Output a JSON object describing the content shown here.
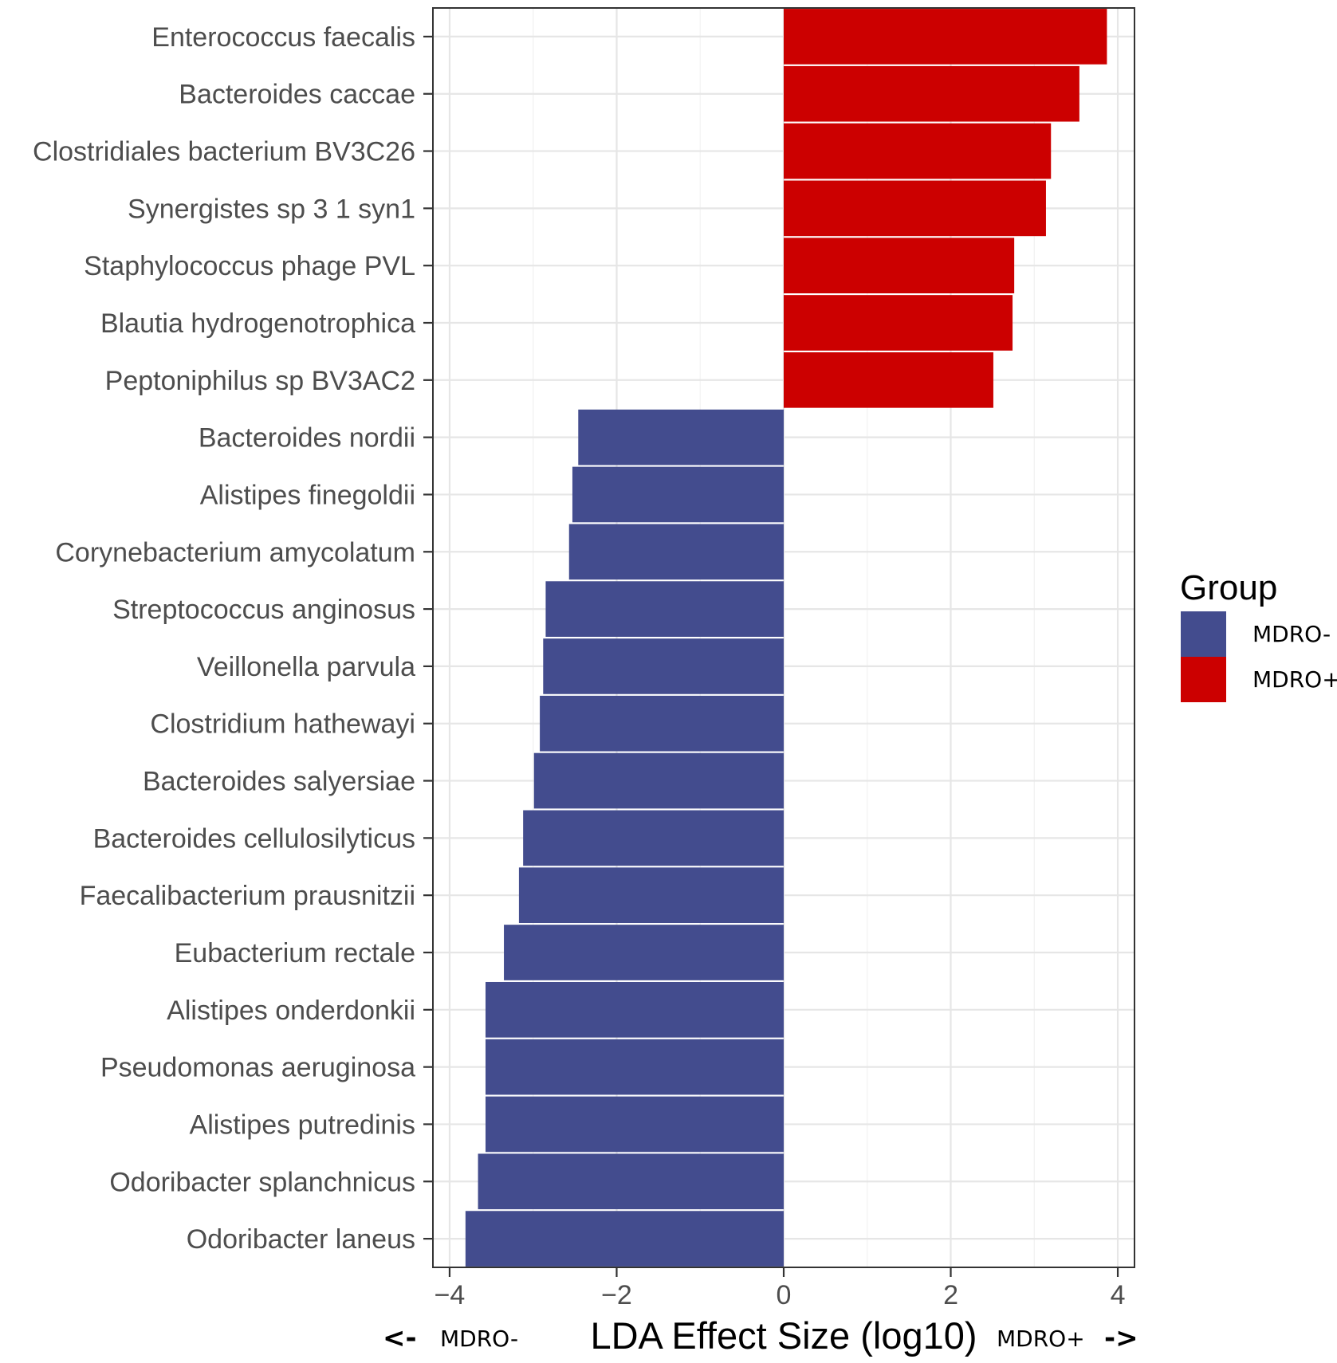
{
  "chart_data": {
    "type": "bar",
    "orientation": "horizontal",
    "categories": [
      "Enterococcus faecalis",
      "Bacteroides caccae",
      "Clostridiales bacterium BV3C26",
      "Synergistes sp 3 1 syn1",
      "Staphylococcus phage PVL",
      "Blautia hydrogenotrophica",
      "Peptoniphilus sp BV3AC2",
      "Bacteroides nordii",
      "Alistipes finegoldii",
      "Corynebacterium amycolatum",
      "Streptococcus anginosus",
      "Veillonella parvula",
      "Clostridium hathewayi",
      "Bacteroides salyersiae",
      "Bacteroides cellulosilyticus",
      "Faecalibacterium prausnitzii",
      "Eubacterium rectale",
      "Alistipes onderdonkii",
      "Pseudomonas aeruginosa",
      "Alistipes putredinis",
      "Odoribacter splanchnicus",
      "Odoribacter laneus"
    ],
    "values": [
      3.87,
      3.54,
      3.2,
      3.14,
      2.76,
      2.74,
      2.51,
      -2.46,
      -2.53,
      -2.57,
      -2.85,
      -2.88,
      -2.92,
      -2.99,
      -3.12,
      -3.17,
      -3.35,
      -3.57,
      -3.57,
      -3.57,
      -3.66,
      -3.81
    ],
    "groups": [
      "MDRO+",
      "MDRO+",
      "MDRO+",
      "MDRO+",
      "MDRO+",
      "MDRO+",
      "MDRO+",
      "MDRO-",
      "MDRO-",
      "MDRO-",
      "MDRO-",
      "MDRO-",
      "MDRO-",
      "MDRO-",
      "MDRO-",
      "MDRO-",
      "MDRO-",
      "MDRO-",
      "MDRO-",
      "MDRO-",
      "MDRO-",
      "MDRO-"
    ],
    "xlim": [
      -4.2,
      4.2
    ],
    "xticks": [
      -4,
      -2,
      0,
      2,
      4
    ],
    "xtick_labels": [
      "−4",
      "−2",
      "0",
      "2",
      "4"
    ],
    "title": "",
    "xlabel": "LDA Effect Size (log10)",
    "ylabel": "",
    "grid": true,
    "direction_labels": {
      "left_arrow": "<-",
      "left_group": "MDRO-",
      "right_group": "MDRO+",
      "right_arrow": "->"
    },
    "legend": {
      "title": "Group",
      "position": "right",
      "entries": [
        {
          "label": "MDRO-",
          "color": "#434c8e"
        },
        {
          "label": "MDRO+",
          "color": "#cc0000"
        }
      ]
    },
    "colors": {
      "MDRO-": "#434c8e",
      "MDRO+": "#cc0000"
    }
  }
}
